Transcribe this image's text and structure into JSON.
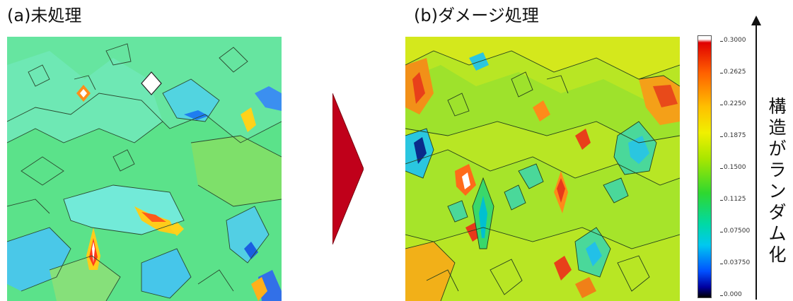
{
  "panels": {
    "a": {
      "title": "(a)未処理"
    },
    "b": {
      "title": "(b)ダメージ処理"
    }
  },
  "colorbar": {
    "ticks": [
      "0.3000",
      "0.2625",
      "0.2250",
      "0.1875",
      "0.1500",
      "0.1125",
      "0.07500",
      "0.03750",
      "0.000"
    ],
    "label": "構造がランダム化",
    "colors": [
      "#ffffff",
      "#e00000",
      "#ff6000",
      "#ffbf00",
      "#f0f000",
      "#a8e600",
      "#2fd82f",
      "#00d9a6",
      "#00c8f0",
      "#0050ff",
      "#0000a0",
      "#000000"
    ]
  },
  "arrow": {
    "color": "#c0001a"
  }
}
